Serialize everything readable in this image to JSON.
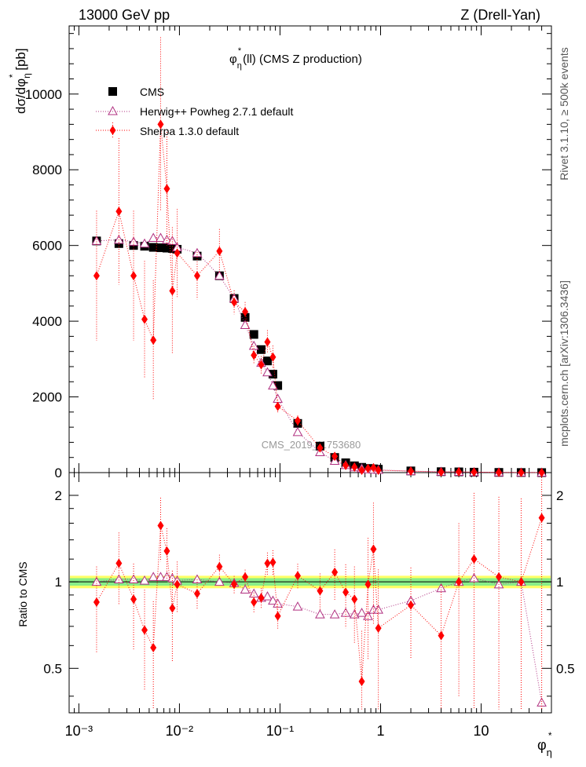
{
  "header": {
    "left": "13000 GeV pp",
    "right": "Z (Drell-Yan)"
  },
  "side": {
    "rivet": "Rivet 3.1.10, ≥ 500k events",
    "mcplots": "mcplots.cern.ch [arXiv:1306.3436]"
  },
  "watermark": "CMS_2019_I1753680",
  "main": {
    "title": "φ",
    "title_sub": "η",
    "title_sup": "*",
    "title_rest": "(ll) (CMS Z production)",
    "ylabel": "dσ/dφ",
    "ylabel_sub": "η",
    "ylabel_sup": "*",
    "ylabel_unit": " [pb]"
  },
  "ratio": {
    "ylabel": "Ratio to CMS",
    "ticks": [
      "0.5",
      "1",
      "2"
    ]
  },
  "xaxis": {
    "label": "φ",
    "label_sub": "η",
    "label_sup": "*"
  },
  "legend": {
    "cms": "CMS",
    "herwig": "Herwig++ Powheg 2.7.1 default",
    "sherpa": "Sherpa 1.3.0 default"
  },
  "chart_data": {
    "type": "scatter",
    "x": [
      0.0015,
      0.0025,
      0.0035,
      0.0045,
      0.0055,
      0.0065,
      0.0075,
      0.0085,
      0.0095,
      0.015,
      0.025,
      0.035,
      0.045,
      0.055,
      0.065,
      0.075,
      0.085,
      0.095,
      0.15,
      0.25,
      0.35,
      0.45,
      0.55,
      0.65,
      0.75,
      0.85,
      0.95,
      2,
      4,
      6,
      8.5,
      15,
      25,
      40
    ],
    "xlim": [
      0.0008,
      50
    ],
    "xscale": "log",
    "xticks": [
      "10⁻³",
      "10⁻²",
      "10⁻¹",
      "1",
      "10"
    ],
    "ylim": [
      0,
      11800
    ],
    "yticks": [
      0,
      2000,
      4000,
      6000,
      8000,
      10000
    ],
    "ratio_ylim": [
      0.35,
      2.4
    ],
    "ratio_scale": "log",
    "series": [
      {
        "name": "CMS",
        "color": "#000000",
        "marker": "square",
        "values": [
          6120,
          6050,
          6000,
          5980,
          5950,
          5940,
          5930,
          5920,
          5900,
          5720,
          5200,
          4600,
          4100,
          3650,
          3250,
          2950,
          2600,
          2300,
          1300,
          700,
          400,
          260,
          180,
          140,
          110,
          100,
          90,
          45,
          25,
          20,
          12,
          6,
          3,
          1
        ]
      },
      {
        "name": "Herwig++ Powheg 2.7.1 default",
        "color": "#b03080",
        "marker": "open-triangle",
        "values": [
          6120,
          6150,
          6100,
          6050,
          6200,
          6200,
          6150,
          6120,
          5950,
          5800,
          5200,
          4600,
          3900,
          3350,
          2900,
          2650,
          2300,
          1950,
          1070,
          540,
          310,
          200,
          140,
          110,
          87,
          80,
          72,
          39,
          24,
          20,
          12.4,
          5.9,
          3.0,
          0.38
        ],
        "ratio": [
          1.0,
          1.02,
          1.02,
          1.01,
          1.04,
          1.04,
          1.04,
          1.03,
          1.01,
          1.02,
          1.0,
          0.99,
          0.94,
          0.91,
          0.88,
          0.89,
          0.86,
          0.84,
          0.82,
          0.77,
          0.77,
          0.78,
          0.77,
          0.78,
          0.76,
          0.8,
          0.8,
          0.86,
          0.95,
          1.0,
          1.03,
          0.98,
          1.0,
          0.38
        ]
      },
      {
        "name": "Sherpa 1.3.0 default",
        "color": "#ff0000",
        "marker": "diamond",
        "values": [
          5200,
          6900,
          5200,
          4050,
          3500,
          9200,
          7500,
          4800,
          5800,
          5200,
          5850,
          4500,
          4250,
          3100,
          2850,
          3450,
          3050,
          1750,
          1370,
          650,
          430,
          190,
          145,
          63,
          110,
          130,
          63,
          38,
          16,
          20,
          14.5,
          6.2,
          3.0,
          1.7
        ],
        "ratio": [
          0.85,
          1.16,
          0.87,
          0.68,
          0.59,
          1.57,
          1.28,
          0.81,
          0.98,
          0.91,
          1.13,
          0.98,
          1.04,
          0.85,
          0.88,
          1.16,
          1.17,
          0.76,
          1.05,
          0.93,
          1.08,
          0.92,
          0.87,
          0.45,
          0.98,
          1.3,
          0.69,
          0.83,
          0.65,
          1.0,
          1.2,
          1.04,
          1.0,
          1.67
        ]
      }
    ]
  }
}
